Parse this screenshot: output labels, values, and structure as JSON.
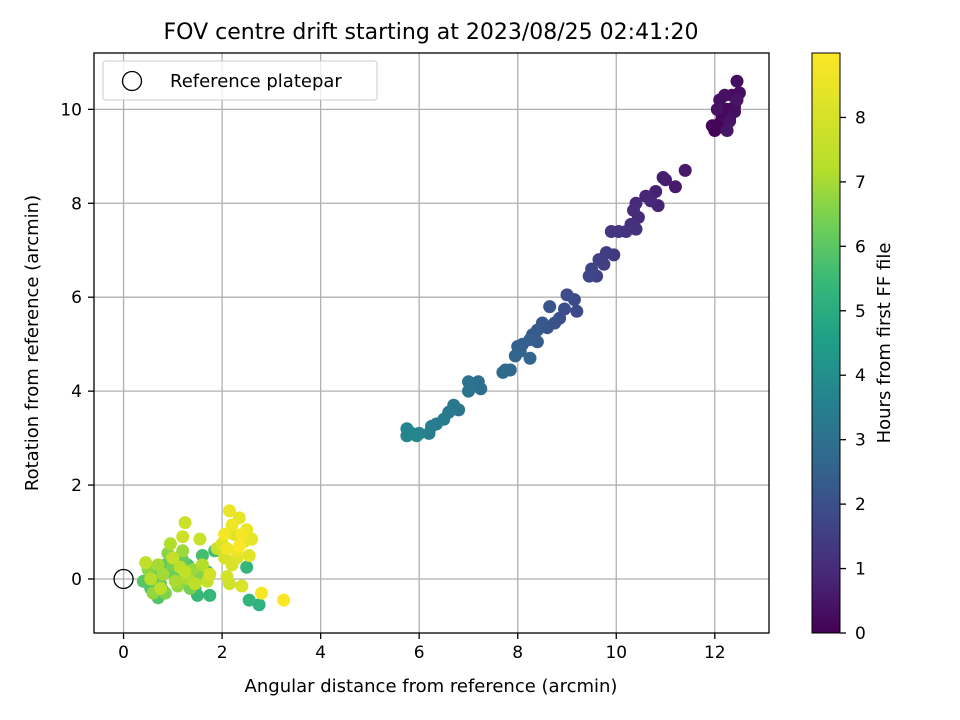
{
  "chart_data": {
    "type": "scatter",
    "title": "FOV centre drift starting at 2023/08/25 02:41:20",
    "xlabel": "Angular distance from reference (arcmin)",
    "ylabel": "Rotation from reference (arcmin)",
    "xlim": [
      -0.6,
      13.1
    ],
    "ylim": [
      -1.15,
      11.2
    ],
    "xticks": [
      0,
      2,
      4,
      6,
      8,
      10,
      12
    ],
    "yticks": [
      0,
      2,
      4,
      6,
      8,
      10
    ],
    "xtick_labels": [
      "0",
      "2",
      "4",
      "6",
      "8",
      "10",
      "12"
    ],
    "ytick_labels": [
      "0",
      "2",
      "4",
      "6",
      "8",
      "10"
    ],
    "grid": true,
    "legend": {
      "placement": "upper-left",
      "entries": [
        {
          "label": "Reference platepar",
          "marker": "open-circle",
          "color": "#000000"
        }
      ]
    },
    "reference_point": {
      "x": 0,
      "y": 0
    },
    "colorbar": {
      "label": "Hours from first FF file",
      "min": 0,
      "max": 9,
      "ticks": [
        0,
        1,
        2,
        3,
        4,
        5,
        6,
        7,
        8
      ],
      "tick_labels": [
        "0",
        "1",
        "2",
        "3",
        "4",
        "5",
        "6",
        "7",
        "8"
      ],
      "colormap": "viridis"
    },
    "series": [
      {
        "points": [
          [
            12.0,
            9.55,
            0.05
          ],
          [
            12.1,
            9.7,
            0.08
          ],
          [
            11.95,
            9.65,
            0.1
          ],
          [
            12.2,
            9.6,
            0.12
          ],
          [
            12.15,
            9.85,
            0.15
          ],
          [
            12.3,
            9.8,
            0.18
          ],
          [
            12.25,
            10.0,
            0.2
          ],
          [
            12.4,
            10.05,
            0.22
          ],
          [
            12.35,
            10.3,
            0.25
          ],
          [
            12.45,
            10.6,
            0.28
          ],
          [
            12.5,
            10.35,
            0.3
          ],
          [
            12.4,
            9.95,
            0.32
          ],
          [
            12.1,
            10.2,
            0.35
          ],
          [
            12.2,
            10.3,
            0.38
          ],
          [
            12.05,
            10.0,
            0.4
          ],
          [
            12.3,
            9.75,
            0.42
          ],
          [
            12.45,
            10.2,
            0.45
          ],
          [
            12.25,
            9.55,
            0.48
          ],
          [
            11.4,
            8.7,
            0.55
          ],
          [
            11.2,
            8.35,
            0.6
          ],
          [
            11.0,
            8.5,
            0.65
          ],
          [
            10.95,
            8.55,
            0.7
          ],
          [
            10.8,
            8.25,
            0.75
          ],
          [
            10.85,
            7.95,
            0.8
          ],
          [
            10.6,
            8.15,
            0.85
          ],
          [
            10.7,
            8.05,
            0.9
          ],
          [
            10.4,
            8.0,
            0.95
          ],
          [
            10.45,
            7.7,
            1.0
          ],
          [
            10.35,
            7.85,
            1.05
          ],
          [
            10.3,
            7.55,
            1.1
          ],
          [
            10.4,
            7.45,
            1.15
          ],
          [
            10.2,
            7.4,
            1.2
          ],
          [
            10.05,
            7.4,
            1.25
          ],
          [
            9.9,
            7.4,
            1.3
          ],
          [
            9.95,
            6.9,
            1.4
          ],
          [
            9.8,
            6.95,
            1.45
          ],
          [
            9.75,
            6.7,
            1.5
          ],
          [
            9.65,
            6.8,
            1.55
          ],
          [
            9.6,
            6.45,
            1.6
          ],
          [
            9.5,
            6.6,
            1.65
          ],
          [
            9.45,
            6.45,
            1.7
          ],
          [
            9.2,
            5.7,
            1.8
          ],
          [
            9.15,
            5.95,
            1.85
          ],
          [
            9.0,
            6.05,
            1.9
          ],
          [
            8.95,
            5.75,
            1.95
          ],
          [
            8.85,
            5.55,
            2.0
          ],
          [
            8.75,
            5.45,
            2.05
          ],
          [
            8.6,
            5.35,
            2.1
          ],
          [
            8.65,
            5.8,
            2.15
          ],
          [
            8.5,
            5.45,
            2.2
          ],
          [
            8.4,
            5.3,
            2.25
          ],
          [
            8.3,
            5.2,
            2.3
          ],
          [
            8.4,
            5.05,
            2.35
          ],
          [
            8.25,
            5.1,
            2.4
          ],
          [
            8.1,
            5.0,
            2.45
          ],
          [
            8.0,
            4.95,
            2.5
          ],
          [
            8.05,
            4.85,
            2.55
          ],
          [
            7.95,
            4.75,
            2.6
          ],
          [
            8.25,
            4.7,
            2.65
          ],
          [
            7.85,
            4.45,
            2.7
          ],
          [
            7.75,
            4.45,
            2.75
          ],
          [
            7.7,
            4.4,
            2.8
          ],
          [
            7.25,
            4.05,
            2.9
          ],
          [
            7.2,
            4.2,
            2.95
          ],
          [
            7.1,
            4.1,
            3.0
          ],
          [
            7.0,
            4.2,
            3.05
          ],
          [
            7.0,
            4.0,
            3.1
          ],
          [
            6.8,
            3.6,
            3.2
          ],
          [
            6.7,
            3.7,
            3.25
          ],
          [
            6.6,
            3.55,
            3.3
          ],
          [
            6.5,
            3.4,
            3.35
          ],
          [
            6.35,
            3.3,
            3.4
          ],
          [
            6.25,
            3.25,
            3.45
          ],
          [
            6.2,
            3.1,
            3.5
          ],
          [
            6.0,
            3.1,
            3.55
          ],
          [
            5.85,
            3.1,
            3.6
          ],
          [
            5.75,
            3.2,
            3.65
          ],
          [
            5.75,
            3.05,
            3.7
          ],
          [
            5.95,
            3.05,
            3.75
          ],
          [
            2.75,
            -0.55,
            5.2
          ],
          [
            2.55,
            -0.45,
            5.3
          ],
          [
            2.5,
            0.25,
            5.35
          ],
          [
            1.75,
            -0.35,
            5.4
          ],
          [
            1.5,
            -0.35,
            5.45
          ],
          [
            1.45,
            -0.2,
            5.5
          ],
          [
            1.7,
            0.15,
            5.55
          ],
          [
            1.85,
            0.6,
            5.6
          ],
          [
            1.6,
            0.5,
            5.65
          ],
          [
            1.3,
            0.3,
            5.7
          ],
          [
            1.1,
            0.45,
            5.75
          ],
          [
            0.8,
            -0.25,
            5.8
          ],
          [
            0.7,
            -0.4,
            5.85
          ],
          [
            0.55,
            -0.2,
            5.9
          ],
          [
            0.4,
            -0.05,
            5.95
          ],
          [
            0.6,
            0.05,
            6.0
          ],
          [
            0.85,
            0.3,
            6.05
          ],
          [
            1.05,
            0.1,
            6.1
          ],
          [
            1.2,
            0.4,
            6.15
          ],
          [
            0.95,
            0.15,
            6.2
          ],
          [
            0.75,
            -0.1,
            6.25
          ],
          [
            0.65,
            0.15,
            6.3
          ],
          [
            1.15,
            -0.05,
            6.35
          ],
          [
            1.35,
            -0.2,
            6.4
          ],
          [
            1.0,
            0.3,
            6.45
          ],
          [
            0.85,
            -0.3,
            6.5
          ],
          [
            1.25,
            0.05,
            6.55
          ],
          [
            1.55,
            0.1,
            6.6
          ],
          [
            0.9,
            0.55,
            6.65
          ],
          [
            0.5,
            0.2,
            6.7
          ],
          [
            0.6,
            -0.3,
            6.75
          ],
          [
            1.1,
            -0.15,
            6.8
          ],
          [
            1.4,
            0.2,
            6.85
          ],
          [
            1.2,
            0.6,
            6.9
          ],
          [
            0.8,
            0.1,
            6.95
          ],
          [
            0.7,
            0.3,
            7.0
          ],
          [
            1.05,
            -0.05,
            7.05
          ],
          [
            1.3,
            0.0,
            7.1
          ],
          [
            0.95,
            0.75,
            7.15
          ],
          [
            1.6,
            0.3,
            7.2
          ],
          [
            0.55,
            0.0,
            7.25
          ],
          [
            1.15,
            0.25,
            7.3
          ],
          [
            0.75,
            -0.2,
            7.35
          ],
          [
            1.45,
            -0.1,
            7.4
          ],
          [
            0.45,
            0.35,
            7.45
          ],
          [
            1.25,
            0.15,
            7.5
          ],
          [
            1.7,
            -0.05,
            7.55
          ],
          [
            1.0,
            0.45,
            7.6
          ],
          [
            1.9,
            0.65,
            7.65
          ],
          [
            1.55,
            0.85,
            7.7
          ],
          [
            1.25,
            1.2,
            7.75
          ],
          [
            1.2,
            0.9,
            7.8
          ],
          [
            2.15,
            -0.1,
            7.85
          ],
          [
            2.1,
            0.05,
            7.9
          ],
          [
            1.75,
            0.1,
            7.95
          ],
          [
            2.05,
            0.45,
            8.0
          ],
          [
            2.2,
            0.3,
            8.05
          ],
          [
            2.4,
            -0.15,
            8.1
          ],
          [
            2.0,
            0.75,
            8.15
          ],
          [
            2.3,
            0.45,
            8.2
          ],
          [
            2.25,
            0.95,
            8.25
          ],
          [
            2.55,
            0.5,
            8.3
          ],
          [
            2.45,
            0.8,
            8.35
          ],
          [
            2.6,
            0.85,
            8.4
          ],
          [
            2.35,
            1.3,
            8.45
          ],
          [
            2.15,
            1.45,
            8.5
          ],
          [
            2.5,
            1.05,
            8.55
          ],
          [
            2.3,
            0.6,
            8.6
          ],
          [
            2.1,
            0.65,
            8.65
          ],
          [
            2.2,
            1.15,
            8.7
          ],
          [
            2.05,
            0.95,
            8.75
          ],
          [
            2.4,
            0.95,
            8.8
          ],
          [
            2.8,
            -0.3,
            8.85
          ],
          [
            3.25,
            -0.45,
            8.9
          ],
          [
            2.35,
            0.7,
            8.95
          ]
        ]
      }
    ]
  }
}
